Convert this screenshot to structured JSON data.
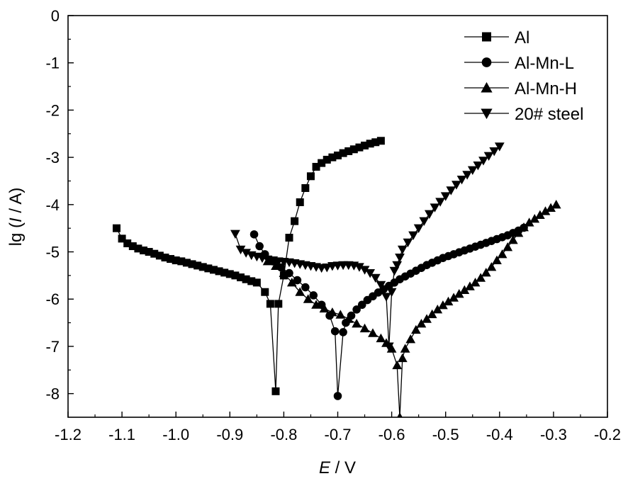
{
  "chart_data": {
    "type": "line",
    "xlabel_symbol": "E",
    "xlabel_unit": " / V",
    "ylabel_prefix": "lg (",
    "ylabel_symbol": "I",
    "ylabel_suffix": " / A)",
    "xlim": [
      -1.2,
      -0.2
    ],
    "ylim": [
      -8.5,
      0
    ],
    "x_ticks": [
      -1.2,
      -1.1,
      -1.0,
      -0.9,
      -0.8,
      -0.7,
      -0.6,
      -0.5,
      -0.4,
      -0.3,
      -0.2
    ],
    "x_tick_labels": [
      "-1.2",
      "-1.1",
      "-1.0",
      "-0.9",
      "-0.8",
      "-0.7",
      "-0.6",
      "-0.5",
      "-0.4",
      "-0.3",
      "-0.2"
    ],
    "y_ticks": [
      0,
      -1,
      -2,
      -3,
      -4,
      -5,
      -6,
      -7,
      -8
    ],
    "y_tick_labels": [
      "0",
      "-1",
      "-2",
      "-3",
      "-4",
      "-5",
      "-6",
      "-7",
      "-8"
    ],
    "grid": false,
    "legend_position": "top-right",
    "series": [
      {
        "name": "Al",
        "marker": "square",
        "points": [
          [
            -1.11,
            -4.5
          ],
          [
            -1.1,
            -4.72
          ],
          [
            -1.09,
            -4.82
          ],
          [
            -1.08,
            -4.88
          ],
          [
            -1.07,
            -4.93
          ],
          [
            -1.06,
            -4.97
          ],
          [
            -1.05,
            -5.0
          ],
          [
            -1.04,
            -5.04
          ],
          [
            -1.03,
            -5.08
          ],
          [
            -1.02,
            -5.12
          ],
          [
            -1.01,
            -5.15
          ],
          [
            -1.0,
            -5.18
          ],
          [
            -0.99,
            -5.2
          ],
          [
            -0.98,
            -5.23
          ],
          [
            -0.97,
            -5.26
          ],
          [
            -0.96,
            -5.29
          ],
          [
            -0.95,
            -5.32
          ],
          [
            -0.94,
            -5.35
          ],
          [
            -0.93,
            -5.38
          ],
          [
            -0.92,
            -5.41
          ],
          [
            -0.91,
            -5.44
          ],
          [
            -0.9,
            -5.47
          ],
          [
            -0.89,
            -5.5
          ],
          [
            -0.88,
            -5.54
          ],
          [
            -0.87,
            -5.58
          ],
          [
            -0.86,
            -5.62
          ],
          [
            -0.85,
            -5.65
          ],
          [
            -0.835,
            -5.85
          ],
          [
            -0.825,
            -6.1
          ],
          [
            -0.815,
            -7.95
          ],
          [
            -0.81,
            -6.1
          ],
          [
            -0.8,
            -5.5
          ],
          [
            -0.79,
            -4.7
          ],
          [
            -0.78,
            -4.35
          ],
          [
            -0.77,
            -3.95
          ],
          [
            -0.76,
            -3.65
          ],
          [
            -0.75,
            -3.4
          ],
          [
            -0.74,
            -3.2
          ],
          [
            -0.73,
            -3.12
          ],
          [
            -0.72,
            -3.05
          ],
          [
            -0.71,
            -3.0
          ],
          [
            -0.7,
            -2.96
          ],
          [
            -0.69,
            -2.91
          ],
          [
            -0.68,
            -2.87
          ],
          [
            -0.67,
            -2.83
          ],
          [
            -0.66,
            -2.79
          ],
          [
            -0.65,
            -2.75
          ],
          [
            -0.64,
            -2.71
          ],
          [
            -0.63,
            -2.68
          ],
          [
            -0.62,
            -2.65
          ]
        ]
      },
      {
        "name": "Al-Mn-L",
        "marker": "circle",
        "points": [
          [
            -0.855,
            -4.63
          ],
          [
            -0.845,
            -4.88
          ],
          [
            -0.835,
            -5.05
          ],
          [
            -0.82,
            -5.2
          ],
          [
            -0.805,
            -5.33
          ],
          [
            -0.79,
            -5.45
          ],
          [
            -0.775,
            -5.6
          ],
          [
            -0.76,
            -5.75
          ],
          [
            -0.745,
            -5.92
          ],
          [
            -0.73,
            -6.12
          ],
          [
            -0.715,
            -6.35
          ],
          [
            -0.705,
            -6.68
          ],
          [
            -0.7,
            -8.05
          ],
          [
            -0.69,
            -6.7
          ],
          [
            -0.685,
            -6.5
          ],
          [
            -0.675,
            -6.35
          ],
          [
            -0.665,
            -6.22
          ],
          [
            -0.655,
            -6.12
          ],
          [
            -0.645,
            -6.02
          ],
          [
            -0.635,
            -5.94
          ],
          [
            -0.625,
            -5.86
          ],
          [
            -0.615,
            -5.79
          ],
          [
            -0.605,
            -5.72
          ],
          [
            -0.595,
            -5.65
          ],
          [
            -0.585,
            -5.58
          ],
          [
            -0.575,
            -5.52
          ],
          [
            -0.565,
            -5.46
          ],
          [
            -0.555,
            -5.4
          ],
          [
            -0.545,
            -5.34
          ],
          [
            -0.535,
            -5.28
          ],
          [
            -0.525,
            -5.23
          ],
          [
            -0.515,
            -5.18
          ],
          [
            -0.505,
            -5.13
          ],
          [
            -0.495,
            -5.09
          ],
          [
            -0.485,
            -5.05
          ],
          [
            -0.475,
            -5.01
          ],
          [
            -0.465,
            -4.97
          ],
          [
            -0.455,
            -4.93
          ],
          [
            -0.445,
            -4.89
          ],
          [
            -0.435,
            -4.85
          ],
          [
            -0.425,
            -4.81
          ],
          [
            -0.415,
            -4.77
          ],
          [
            -0.405,
            -4.73
          ],
          [
            -0.395,
            -4.69
          ],
          [
            -0.385,
            -4.65
          ],
          [
            -0.375,
            -4.6
          ],
          [
            -0.365,
            -4.55
          ],
          [
            -0.355,
            -4.49
          ]
        ]
      },
      {
        "name": "Al-Mn-H",
        "marker": "triangle-up",
        "points": [
          [
            -0.83,
            -5.2
          ],
          [
            -0.815,
            -5.3
          ],
          [
            -0.8,
            -5.45
          ],
          [
            -0.785,
            -5.65
          ],
          [
            -0.77,
            -5.85
          ],
          [
            -0.755,
            -6.0
          ],
          [
            -0.74,
            -6.12
          ],
          [
            -0.725,
            -6.2
          ],
          [
            -0.71,
            -6.28
          ],
          [
            -0.695,
            -6.33
          ],
          [
            -0.68,
            -6.42
          ],
          [
            -0.665,
            -6.52
          ],
          [
            -0.65,
            -6.62
          ],
          [
            -0.635,
            -6.72
          ],
          [
            -0.62,
            -6.83
          ],
          [
            -0.61,
            -6.93
          ],
          [
            -0.6,
            -7.05
          ],
          [
            -0.59,
            -7.4
          ],
          [
            -0.585,
            -8.5
          ],
          [
            -0.58,
            -7.25
          ],
          [
            -0.575,
            -7.05
          ],
          [
            -0.565,
            -6.85
          ],
          [
            -0.555,
            -6.65
          ],
          [
            -0.545,
            -6.52
          ],
          [
            -0.535,
            -6.42
          ],
          [
            -0.525,
            -6.32
          ],
          [
            -0.515,
            -6.22
          ],
          [
            -0.505,
            -6.13
          ],
          [
            -0.495,
            -6.05
          ],
          [
            -0.485,
            -5.97
          ],
          [
            -0.475,
            -5.89
          ],
          [
            -0.465,
            -5.81
          ],
          [
            -0.455,
            -5.73
          ],
          [
            -0.445,
            -5.65
          ],
          [
            -0.435,
            -5.55
          ],
          [
            -0.425,
            -5.44
          ],
          [
            -0.415,
            -5.32
          ],
          [
            -0.405,
            -5.18
          ],
          [
            -0.395,
            -5.05
          ],
          [
            -0.385,
            -4.9
          ],
          [
            -0.375,
            -4.75
          ],
          [
            -0.365,
            -4.6
          ],
          [
            -0.355,
            -4.48
          ],
          [
            -0.345,
            -4.38
          ],
          [
            -0.335,
            -4.3
          ],
          [
            -0.325,
            -4.22
          ],
          [
            -0.315,
            -4.14
          ],
          [
            -0.305,
            -4.07
          ],
          [
            -0.295,
            -4.0
          ]
        ]
      },
      {
        "name": "20# steel",
        "marker": "triangle-down",
        "points": [
          [
            -0.89,
            -4.62
          ],
          [
            -0.88,
            -4.95
          ],
          [
            -0.87,
            -5.02
          ],
          [
            -0.86,
            -5.07
          ],
          [
            -0.85,
            -5.1
          ],
          [
            -0.84,
            -5.13
          ],
          [
            -0.83,
            -5.16
          ],
          [
            -0.82,
            -5.18
          ],
          [
            -0.81,
            -5.2
          ],
          [
            -0.8,
            -5.21
          ],
          [
            -0.79,
            -5.22
          ],
          [
            -0.78,
            -5.24
          ],
          [
            -0.77,
            -5.26
          ],
          [
            -0.76,
            -5.28
          ],
          [
            -0.75,
            -5.3
          ],
          [
            -0.74,
            -5.32
          ],
          [
            -0.73,
            -5.34
          ],
          [
            -0.72,
            -5.33
          ],
          [
            -0.71,
            -5.3
          ],
          [
            -0.7,
            -5.29
          ],
          [
            -0.69,
            -5.28
          ],
          [
            -0.68,
            -5.28
          ],
          [
            -0.67,
            -5.29
          ],
          [
            -0.66,
            -5.32
          ],
          [
            -0.65,
            -5.38
          ],
          [
            -0.64,
            -5.45
          ],
          [
            -0.63,
            -5.55
          ],
          [
            -0.62,
            -5.7
          ],
          [
            -0.61,
            -5.95
          ],
          [
            -0.605,
            -7.0
          ],
          [
            -0.6,
            -5.85
          ],
          [
            -0.595,
            -5.4
          ],
          [
            -0.59,
            -5.28
          ],
          [
            -0.585,
            -5.12
          ],
          [
            -0.58,
            -4.95
          ],
          [
            -0.57,
            -4.8
          ],
          [
            -0.56,
            -4.65
          ],
          [
            -0.55,
            -4.5
          ],
          [
            -0.54,
            -4.35
          ],
          [
            -0.53,
            -4.2
          ],
          [
            -0.52,
            -4.06
          ],
          [
            -0.51,
            -3.94
          ],
          [
            -0.5,
            -3.82
          ],
          [
            -0.49,
            -3.7
          ],
          [
            -0.48,
            -3.58
          ],
          [
            -0.47,
            -3.47
          ],
          [
            -0.46,
            -3.37
          ],
          [
            -0.45,
            -3.27
          ],
          [
            -0.44,
            -3.17
          ],
          [
            -0.43,
            -3.07
          ],
          [
            -0.42,
            -2.97
          ],
          [
            -0.41,
            -2.87
          ],
          [
            -0.4,
            -2.77
          ]
        ]
      }
    ]
  }
}
